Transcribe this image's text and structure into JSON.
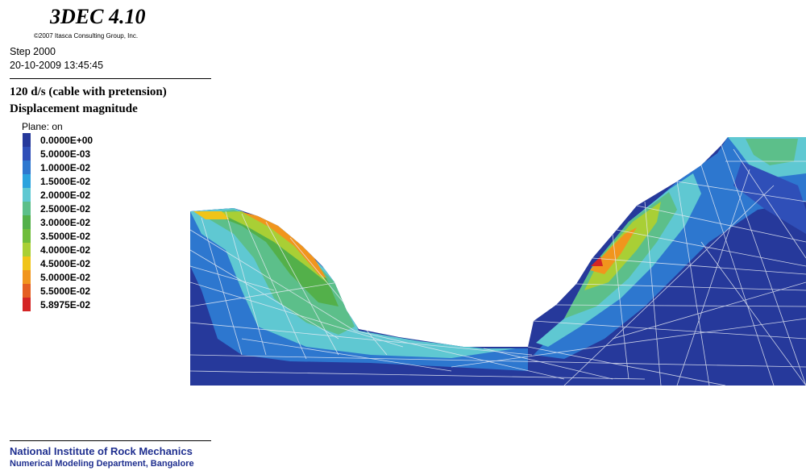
{
  "header": {
    "app_title": "3DEC 4.10",
    "copyright": "©2007 Itasca Consulting Group, Inc.",
    "step": "Step 2000",
    "datetime": "20-10-2009 13:45:45"
  },
  "plot": {
    "case_title": "120 d/s (cable with pretension)",
    "title": "Displacement magnitude",
    "plane": "Plane: on"
  },
  "legend": [
    {
      "label": "0.0000E+00",
      "color": "#26399b"
    },
    {
      "label": "5.0000E-03",
      "color": "#2f4fb8"
    },
    {
      "label": "1.0000E-02",
      "color": "#2d77cf"
    },
    {
      "label": "1.5000E-02",
      "color": "#2aa3de"
    },
    {
      "label": "2.0000E-02",
      "color": "#5fc8d2"
    },
    {
      "label": "2.5000E-02",
      "color": "#5cbf8a"
    },
    {
      "label": "3.0000E-02",
      "color": "#53b04a"
    },
    {
      "label": "3.5000E-02",
      "color": "#6fbd3b"
    },
    {
      "label": "4.0000E-02",
      "color": "#a9cf35"
    },
    {
      "label": "4.5000E-02",
      "color": "#f0c419"
    },
    {
      "label": "5.0000E-02",
      "color": "#f1951d"
    },
    {
      "label": "5.5000E-02",
      "color": "#e45f22"
    },
    {
      "label": "5.8975E-02",
      "color": "#d42525"
    }
  ],
  "footer": {
    "organization": "National Institute of Rock Mechanics",
    "department": "Numerical Modeling Department, Bangalore"
  }
}
